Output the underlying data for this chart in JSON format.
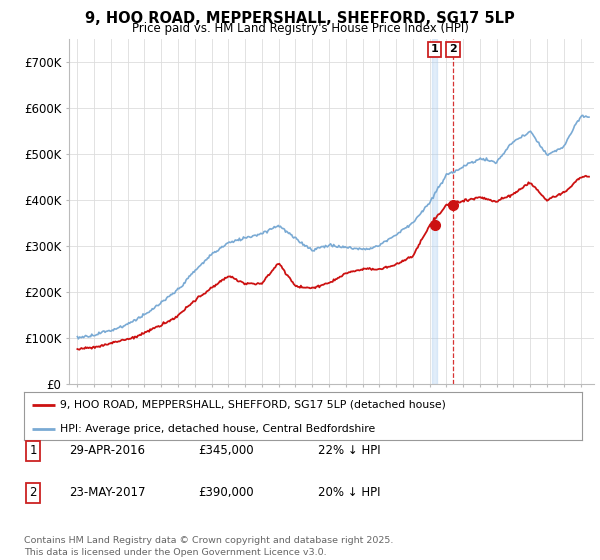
{
  "title_line1": "9, HOO ROAD, MEPPERSHALL, SHEFFORD, SG17 5LP",
  "title_line2": "Price paid vs. HM Land Registry's House Price Index (HPI)",
  "ylim": [
    0,
    750000
  ],
  "yticks": [
    0,
    100000,
    200000,
    300000,
    400000,
    500000,
    600000,
    700000
  ],
  "ytick_labels": [
    "£0",
    "£100K",
    "£200K",
    "£300K",
    "£400K",
    "£500K",
    "£600K",
    "£700K"
  ],
  "hpi_color": "#7aaad4",
  "price_color": "#cc1111",
  "vline1_color": "#cc0000",
  "vline2_color": "#cc0000",
  "purchase1_date_x": 2016.3,
  "purchase1_price": 345000,
  "purchase2_date_x": 2017.4,
  "purchase2_price": 390000,
  "legend_line1": "9, HOO ROAD, MEPPERSHALL, SHEFFORD, SG17 5LP (detached house)",
  "legend_line2": "HPI: Average price, detached house, Central Bedfordshire",
  "table_row1": [
    "1",
    "29-APR-2016",
    "£345,000",
    "22% ↓ HPI"
  ],
  "table_row2": [
    "2",
    "23-MAY-2017",
    "£390,000",
    "20% ↓ HPI"
  ],
  "footnote": "Contains HM Land Registry data © Crown copyright and database right 2025.\nThis data is licensed under the Open Government Licence v3.0.",
  "bg_color": "#ffffff",
  "grid_color": "#dddddd",
  "xmin": 1994.5,
  "xmax": 2025.8
}
